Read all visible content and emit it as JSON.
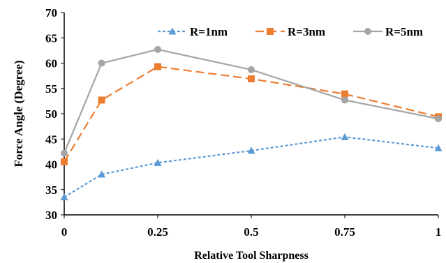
{
  "chart_data": {
    "type": "line",
    "title": "",
    "xlabel": "Relative Tool Sharpness",
    "ylabel": "Force Angle (Degree)",
    "x": [
      0,
      0.1,
      0.25,
      0.5,
      0.75,
      1
    ],
    "xticks": [
      {
        "value": 0,
        "label": "0"
      },
      {
        "value": 0.25,
        "label": "0.25"
      },
      {
        "value": 0.5,
        "label": "0.5"
      },
      {
        "value": 0.75,
        "label": "0.75"
      },
      {
        "value": 1,
        "label": "1"
      }
    ],
    "yticks": [
      {
        "value": 30,
        "label": "30"
      },
      {
        "value": 35,
        "label": "35"
      },
      {
        "value": 40,
        "label": "40"
      },
      {
        "value": 45,
        "label": "45"
      },
      {
        "value": 50,
        "label": "50"
      },
      {
        "value": 55,
        "label": "55"
      },
      {
        "value": 60,
        "label": "60"
      },
      {
        "value": 65,
        "label": "65"
      },
      {
        "value": 70,
        "label": "70"
      }
    ],
    "xlim": [
      0,
      1
    ],
    "ylim": [
      30,
      70
    ],
    "grid": false,
    "legend_position": "top-right",
    "series": [
      {
        "name": "R=1nm",
        "color": "#5b9bd5",
        "marker": "triangle",
        "dash": "dotted",
        "values": [
          33.5,
          38.0,
          40.3,
          42.7,
          45.4,
          43.2
        ]
      },
      {
        "name": "R=3nm",
        "color": "#ed7d31",
        "marker": "square",
        "dash": "dashed",
        "values": [
          40.5,
          52.7,
          59.3,
          56.9,
          53.9,
          49.4
        ]
      },
      {
        "name": "R=5nm",
        "color": "#a5a5a5",
        "marker": "circle",
        "dash": "solid",
        "values": [
          42.2,
          60.0,
          62.7,
          58.7,
          52.7,
          49.0
        ]
      }
    ]
  }
}
